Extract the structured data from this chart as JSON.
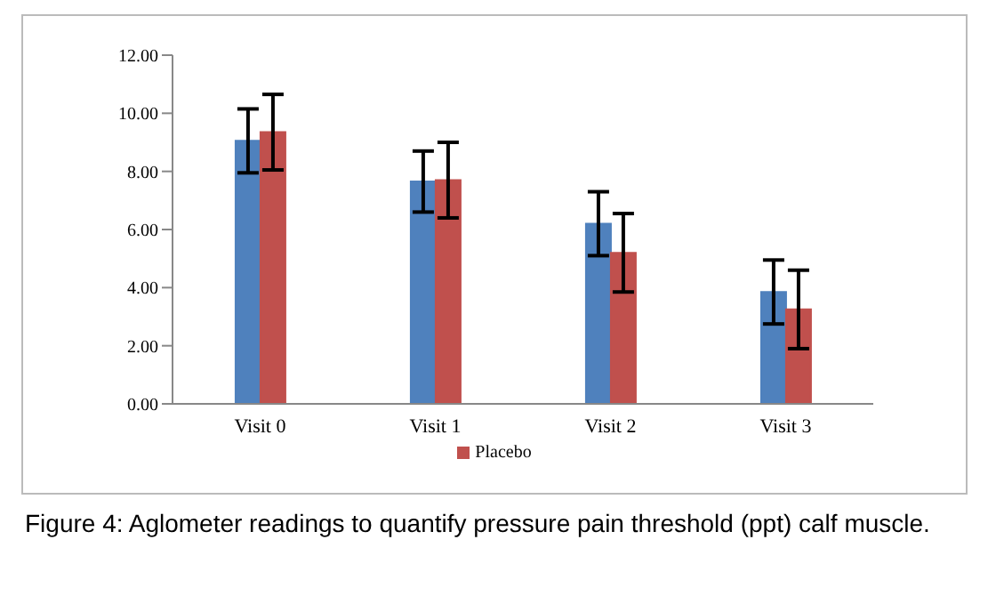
{
  "chart_data": {
    "type": "bar",
    "categories": [
      "Visit 0",
      "Visit 1",
      "Visit 2",
      "Visit 3"
    ],
    "series": [
      {
        "color": "#4f81bd",
        "values": [
          9.05,
          7.65,
          6.2,
          3.85
        ],
        "errors": [
          1.1,
          1.05,
          1.1,
          1.1
        ]
      },
      {
        "name": "Placebo",
        "color": "#c0504d",
        "values": [
          9.35,
          7.7,
          5.2,
          3.25
        ],
        "errors": [
          1.3,
          1.3,
          1.35,
          1.35
        ]
      }
    ],
    "ylim": [
      0,
      12
    ],
    "yticks": [
      {
        "value": 0,
        "label": "0.00"
      },
      {
        "value": 2,
        "label": "2.00"
      },
      {
        "value": 4,
        "label": "4.00"
      },
      {
        "value": 6,
        "label": "6.00"
      },
      {
        "value": 8,
        "label": "8.00"
      },
      {
        "value": 10,
        "label": "10.00"
      },
      {
        "value": 12,
        "label": "12.00"
      }
    ],
    "grid": false,
    "legend": "bottom",
    "annotations": [
      "Figure 4: Aglometer readings to quantify pressure pain threshold (ppt) calf muscle."
    ]
  }
}
